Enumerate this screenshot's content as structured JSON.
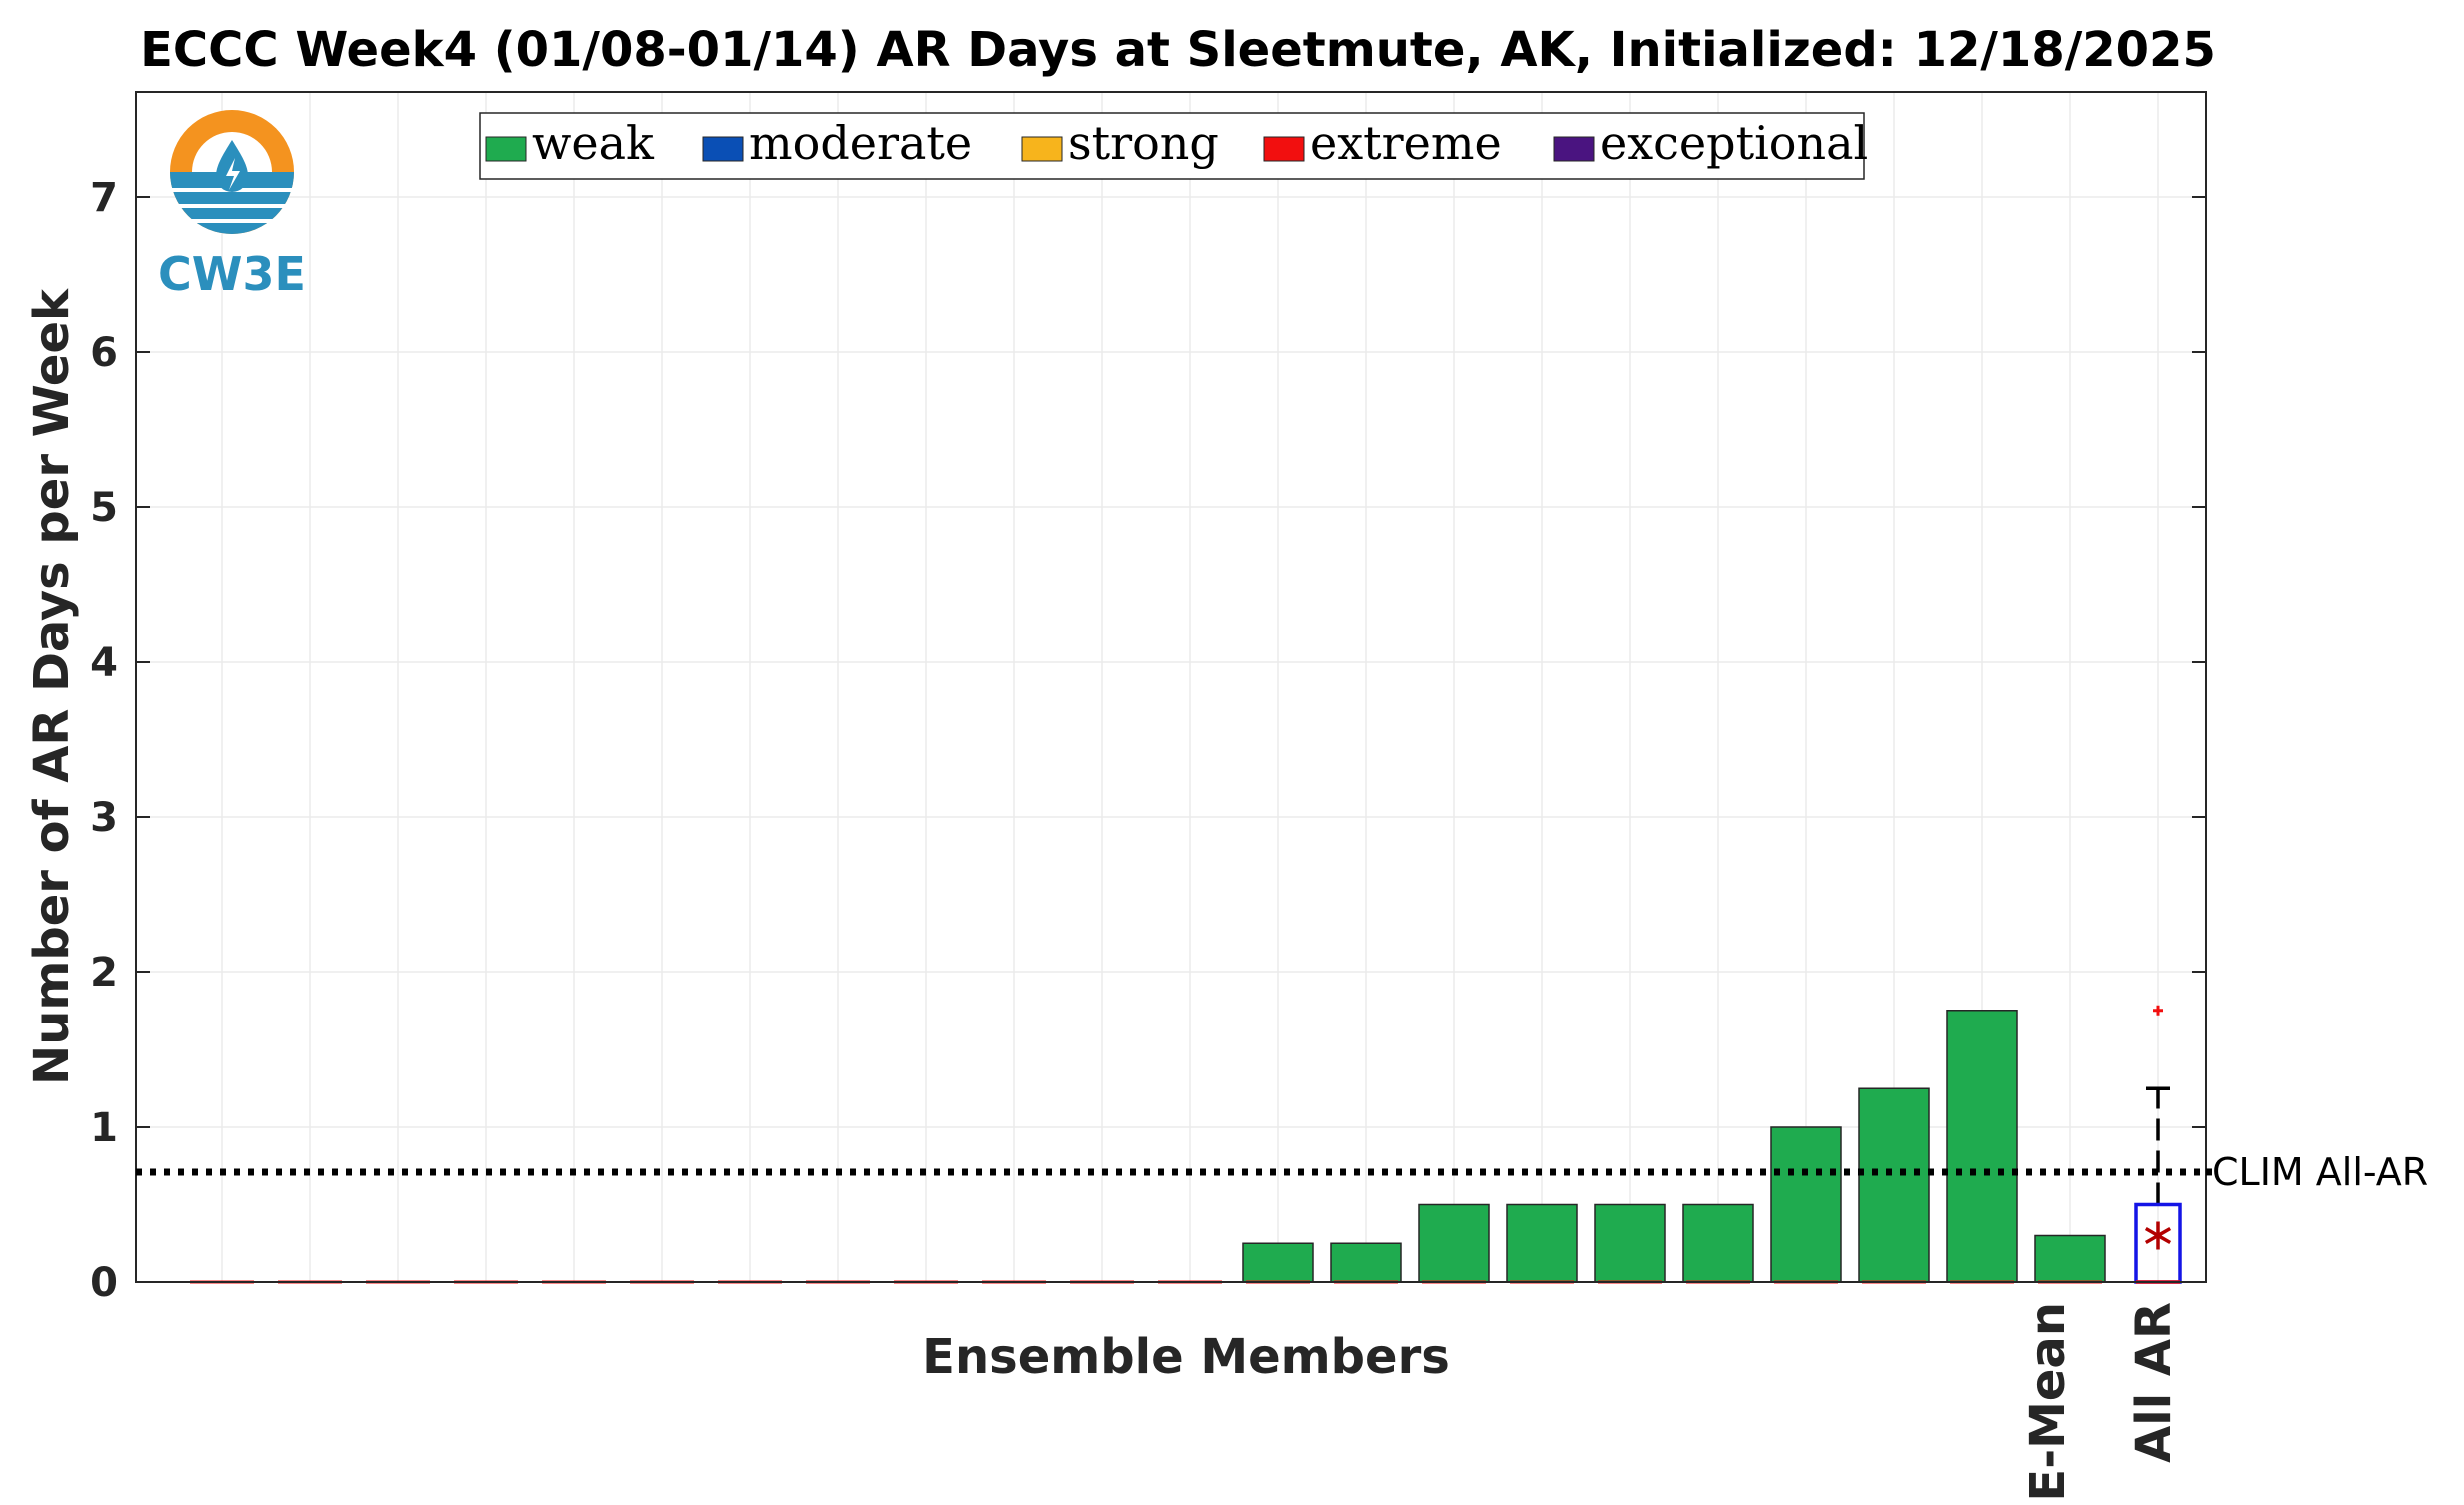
{
  "chart_data": {
    "type": "bar",
    "title": "ECCC Week4 (01/08-01/14) AR Days at Sleetmute, AK, Initialized: 12/18/2025",
    "xlabel": "Ensemble Members",
    "ylabel": "Number of AR Days per Week",
    "ylim": [
      0,
      7.7
    ],
    "yticks": [
      0,
      1,
      2,
      3,
      4,
      5,
      6,
      7
    ],
    "grid": true,
    "legend_position": "top",
    "legend": [
      {
        "label": "weak",
        "color": "#1fab4f"
      },
      {
        "label": "moderate",
        "color": "#0a4fb5"
      },
      {
        "label": "strong",
        "color": "#f7b41c"
      },
      {
        "label": "extreme",
        "color": "#f20f0f"
      },
      {
        "label": "exceptional",
        "color": "#4a1480"
      }
    ],
    "series": [
      {
        "name": "weak",
        "values": [
          0,
          0,
          0,
          0,
          0,
          0,
          0,
          0,
          0,
          0,
          0,
          0,
          0.25,
          0.25,
          0.5,
          0.5,
          0.5,
          0.5,
          1.0,
          1.25,
          1.75
        ]
      }
    ],
    "ensemble_mean": 0.3,
    "ensemble_mean_label": "E-Mean",
    "boxplot": {
      "label": "All AR",
      "min": 0,
      "q1": 0,
      "median": 0,
      "q3": 0.5,
      "whisker_high": 1.25,
      "mean": 0.3,
      "outliers": [
        1.75
      ]
    },
    "climatology": {
      "label": "CLIM All-AR",
      "value": 0.71
    },
    "logo_text": "CW3E"
  }
}
